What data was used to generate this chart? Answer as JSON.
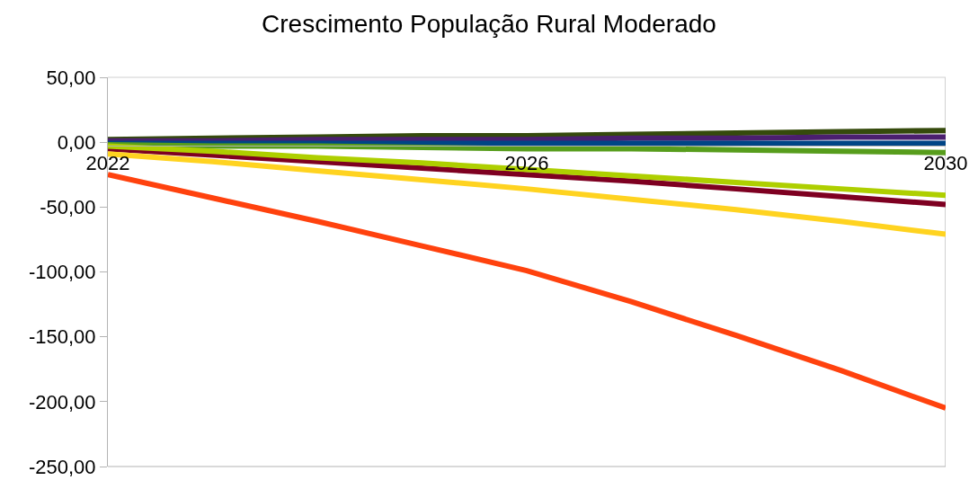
{
  "chart_data": {
    "type": "line",
    "title": "Crescimento População Rural Moderado",
    "x": [
      2022,
      2023,
      2024,
      2025,
      2026,
      2027,
      2028,
      2029,
      2030
    ],
    "xlim": [
      2022,
      2030
    ],
    "xticks": [
      2022,
      2026,
      2030
    ],
    "ylim": [
      -250,
      50
    ],
    "yticks": [
      {
        "value": 50,
        "label": "50,00"
      },
      {
        "value": 0,
        "label": "0,00"
      },
      {
        "value": -50,
        "label": "-50,00"
      },
      {
        "value": -100,
        "label": "-100,00"
      },
      {
        "value": -150,
        "label": "-150,00"
      },
      {
        "value": -200,
        "label": "-200,00"
      },
      {
        "value": -250,
        "label": "-250,00"
      }
    ],
    "grid": false,
    "marker": "none",
    "line_style": "solid",
    "series": [
      {
        "color": "#354a0c",
        "values": [
          2,
          3,
          4,
          5,
          5,
          6,
          7,
          8,
          9
        ]
      },
      {
        "color": "#4b1f6f",
        "values": [
          1,
          1,
          2,
          2,
          2,
          3,
          3,
          4,
          4
        ]
      },
      {
        "color": "#004586",
        "values": [
          -1,
          -1,
          -1,
          -1,
          -1,
          -1,
          -1,
          -1,
          -1
        ]
      },
      {
        "color": "#579d1c",
        "values": [
          -2,
          -3,
          -3,
          -4,
          -5,
          -5,
          -6,
          -7,
          -8
        ]
      },
      {
        "color": "#7e0021",
        "values": [
          -5,
          -10,
          -15,
          -20,
          -25,
          -30,
          -36,
          -42,
          -48
        ]
      },
      {
        "color": "#aecf00",
        "values": [
          -3,
          -7,
          -12,
          -16,
          -21,
          -26,
          -31,
          -36,
          -41
        ]
      },
      {
        "color": "#ffd320",
        "values": [
          -9,
          -15,
          -22,
          -29,
          -36,
          -44,
          -52,
          -61,
          -71
        ]
      },
      {
        "color": "#ff420e",
        "values": [
          -25,
          -43,
          -61,
          -80,
          -99,
          -123,
          -149,
          -176,
          -205
        ]
      }
    ]
  }
}
